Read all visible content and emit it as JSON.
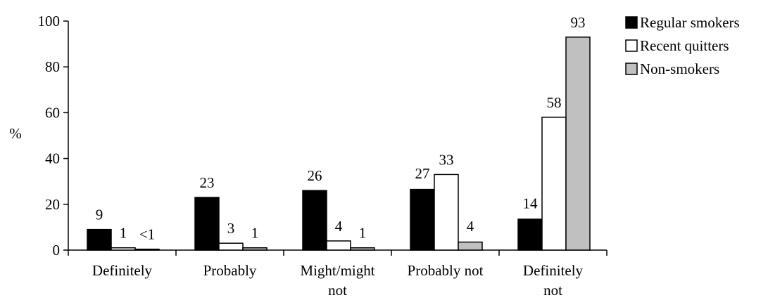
{
  "chart_data": {
    "type": "bar",
    "title": "",
    "xlabel": "",
    "ylabel": "%",
    "ylim": [
      0,
      100
    ],
    "yticks": [
      0,
      20,
      40,
      60,
      80,
      100
    ],
    "ytick_labels": [
      "0",
      "20",
      "40",
      "60",
      "80",
      "100"
    ],
    "grid": false,
    "legend_position": "top-right",
    "categories": [
      [
        "Definitely"
      ],
      [
        "Probably"
      ],
      [
        "Might/might",
        "not"
      ],
      [
        "Probably not"
      ],
      [
        "Definitely",
        "not"
      ]
    ],
    "series": [
      {
        "name": "Regular smokers",
        "color": "#000000",
        "values": [
          9,
          23,
          26,
          27,
          14
        ],
        "bar_values": [
          9,
          23,
          26,
          26.5,
          13.5
        ],
        "labels": [
          "9",
          "23",
          "26",
          "27",
          "14"
        ]
      },
      {
        "name": "Recent quitters",
        "color": "#ffffff",
        "values": [
          1,
          3,
          4,
          33,
          58
        ],
        "bar_values": [
          1,
          3,
          4,
          33,
          58
        ],
        "labels": [
          "1",
          "3",
          "4",
          "33",
          "58"
        ]
      },
      {
        "name": "Non-smokers",
        "color": "#c0c0c0",
        "values": [
          0.4,
          1,
          1,
          4,
          93
        ],
        "bar_values": [
          0.4,
          1,
          1,
          3.5,
          93
        ],
        "labels": [
          "<1",
          "1",
          "1",
          "4",
          "93"
        ]
      }
    ]
  }
}
